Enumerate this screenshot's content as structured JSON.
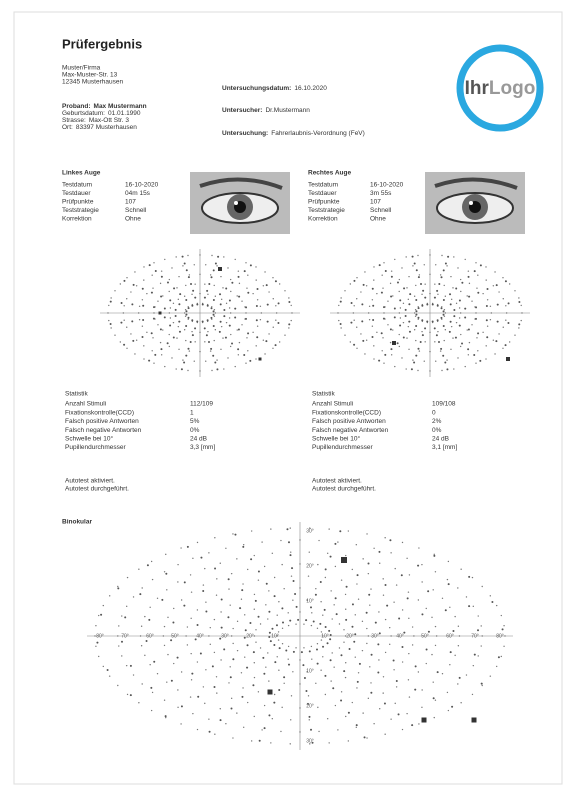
{
  "header": {
    "title": "Prüfergebnis",
    "logo_a": "Ihr",
    "logo_b": "Logo"
  },
  "company": [
    "Muster/Firma",
    "Max-Muster-Str. 13",
    "12345 Musterhausen"
  ],
  "patient": [
    {
      "label": "Proband:",
      "value": "Max Mustermann"
    },
    {
      "label": "Geburtsdatum:",
      "value": "01.01.1990"
    },
    {
      "label": "Strasse:",
      "value": "Max-Ott Str. 3"
    },
    {
      "label": "Ort:",
      "value": "83397 Musterhausen"
    }
  ],
  "exam": [
    {
      "label": "Untersuchungsdatum:",
      "value": "16.10.2020"
    },
    {
      "label": "Untersucher:",
      "value": "Dr.Mustermann"
    },
    {
      "label": "Untersuchung:",
      "value": "Fahrerlaubnis-Verordnung (FeV)"
    }
  ],
  "eyes": [
    {
      "title": "Linkes Auge",
      "rows": [
        [
          "Testdatum",
          "16-10-2020"
        ],
        [
          "Testdauer",
          "04m 15s"
        ],
        [
          "Prüfpunkte",
          "107"
        ],
        [
          "Teststrategie",
          "Schnell"
        ],
        [
          "Korrektion",
          "Ohne"
        ]
      ],
      "stats_title": "Statistik",
      "stats": [
        [
          "Anzahl Stimuli",
          "112/109"
        ],
        [
          "Fixationskontrolle(CCD)",
          "1"
        ],
        [
          "Falsch positive Antworten",
          "5%"
        ],
        [
          "Falsch negative Antworten",
          "0%"
        ],
        [
          "Schwelle bei 10°",
          "24 dB"
        ],
        [
          "Pupillendurchmesser",
          "3,3 [mm]"
        ]
      ],
      "notes": [
        "Autotest aktiviert.",
        "Autotest durchgeführt."
      ]
    },
    {
      "title": "Rechtes Auge",
      "rows": [
        [
          "Testdatum",
          "16-10-2020"
        ],
        [
          "Testdauer",
          "3m 55s"
        ],
        [
          "Prüfpunkte",
          "107"
        ],
        [
          "Teststrategie",
          "Schnell"
        ],
        [
          "Korrektion",
          "Ohne"
        ]
      ],
      "stats_title": "Statistik",
      "stats": [
        [
          "Anzahl Stimuli",
          "109/108"
        ],
        [
          "Fixationskontrolle(CCD)",
          "0"
        ],
        [
          "Falsch positive Antworten",
          "2%"
        ],
        [
          "Falsch negative Antworten",
          "0%"
        ],
        [
          "Schwelle bei 10°",
          "24 dB"
        ],
        [
          "Pupillendurchmesser",
          "3,1 [mm]"
        ]
      ],
      "notes": [
        "Autotest aktiviert.",
        "Autotest durchgeführt."
      ]
    }
  ],
  "binocular": {
    "title": "Binokular",
    "x_labels": [
      "80°",
      "70°",
      "60°",
      "50°",
      "40°",
      "30°",
      "20°",
      "10°",
      "10°",
      "20°",
      "30°",
      "40°",
      "50°",
      "60°",
      "70°",
      "80°"
    ],
    "y_labels": [
      "30°",
      "20°",
      "10°",
      "10°",
      "20°",
      "30°"
    ]
  }
}
